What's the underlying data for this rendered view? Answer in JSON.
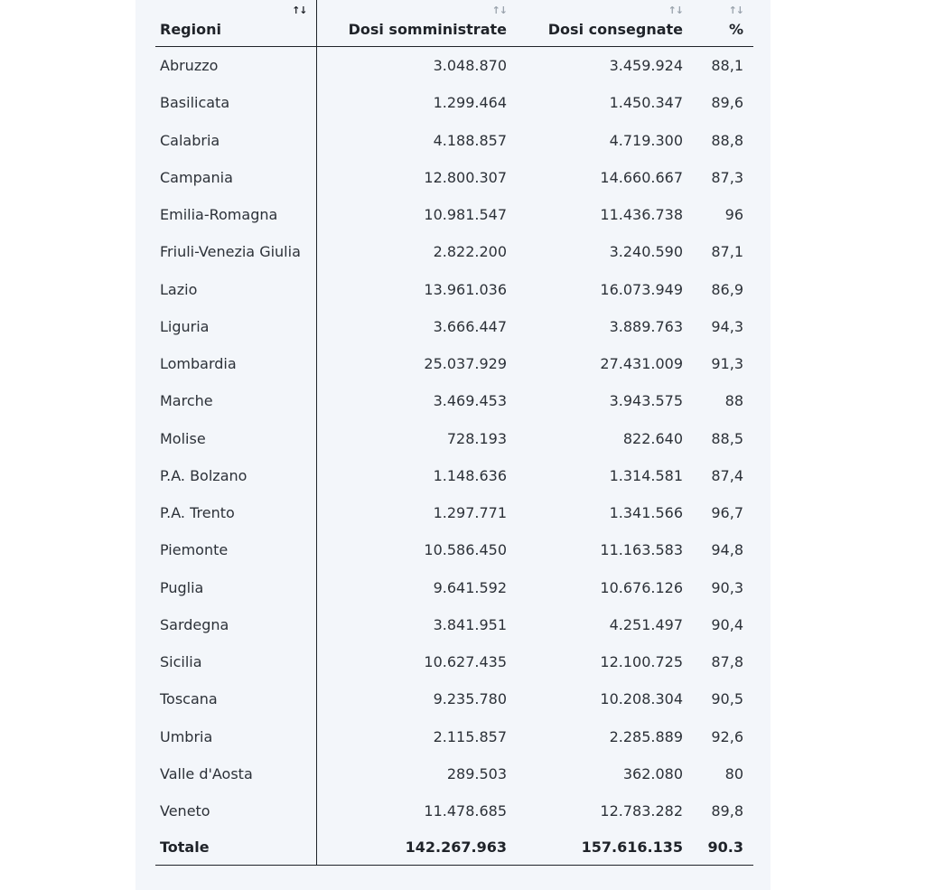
{
  "headers": {
    "region": "Regioni",
    "administered": "Dosi somministrate",
    "delivered": "Dosi consegnate",
    "percent": "%",
    "sort_glyph": "↑↓"
  },
  "rows": [
    {
      "region": "Abruzzo",
      "administered": "3.048.870",
      "delivered": "3.459.924",
      "percent": "88,1"
    },
    {
      "region": "Basilicata",
      "administered": "1.299.464",
      "delivered": "1.450.347",
      "percent": "89,6"
    },
    {
      "region": "Calabria",
      "administered": "4.188.857",
      "delivered": "4.719.300",
      "percent": "88,8"
    },
    {
      "region": "Campania",
      "administered": "12.800.307",
      "delivered": "14.660.667",
      "percent": "87,3"
    },
    {
      "region": "Emilia-Romagna",
      "administered": "10.981.547",
      "delivered": "11.436.738",
      "percent": "96"
    },
    {
      "region": "Friuli-Venezia Giulia",
      "administered": "2.822.200",
      "delivered": "3.240.590",
      "percent": "87,1"
    },
    {
      "region": "Lazio",
      "administered": "13.961.036",
      "delivered": "16.073.949",
      "percent": "86,9"
    },
    {
      "region": "Liguria",
      "administered": "3.666.447",
      "delivered": "3.889.763",
      "percent": "94,3"
    },
    {
      "region": "Lombardia",
      "administered": "25.037.929",
      "delivered": "27.431.009",
      "percent": "91,3"
    },
    {
      "region": "Marche",
      "administered": "3.469.453",
      "delivered": "3.943.575",
      "percent": "88"
    },
    {
      "region": "Molise",
      "administered": "728.193",
      "delivered": "822.640",
      "percent": "88,5"
    },
    {
      "region": "P.A. Bolzano",
      "administered": "1.148.636",
      "delivered": "1.314.581",
      "percent": "87,4"
    },
    {
      "region": "P.A. Trento",
      "administered": "1.297.771",
      "delivered": "1.341.566",
      "percent": "96,7"
    },
    {
      "region": "Piemonte",
      "administered": "10.586.450",
      "delivered": "11.163.583",
      "percent": "94,8"
    },
    {
      "region": "Puglia",
      "administered": "9.641.592",
      "delivered": "10.676.126",
      "percent": "90,3"
    },
    {
      "region": "Sardegna",
      "administered": "3.841.951",
      "delivered": "4.251.497",
      "percent": "90,4"
    },
    {
      "region": "Sicilia",
      "administered": "10.627.435",
      "delivered": "12.100.725",
      "percent": "87,8"
    },
    {
      "region": "Toscana",
      "administered": "9.235.780",
      "delivered": "10.208.304",
      "percent": "90,5"
    },
    {
      "region": "Umbria",
      "administered": "2.115.857",
      "delivered": "2.285.889",
      "percent": "92,6"
    },
    {
      "region": "Valle d'Aosta",
      "administered": "289.503",
      "delivered": "362.080",
      "percent": "80"
    },
    {
      "region": "Veneto",
      "administered": "11.478.685",
      "delivered": "12.783.282",
      "percent": "89,8"
    }
  ],
  "total": {
    "label": "Totale",
    "administered": "142.267.963",
    "delivered": "157.616.135",
    "percent": "90.3"
  }
}
